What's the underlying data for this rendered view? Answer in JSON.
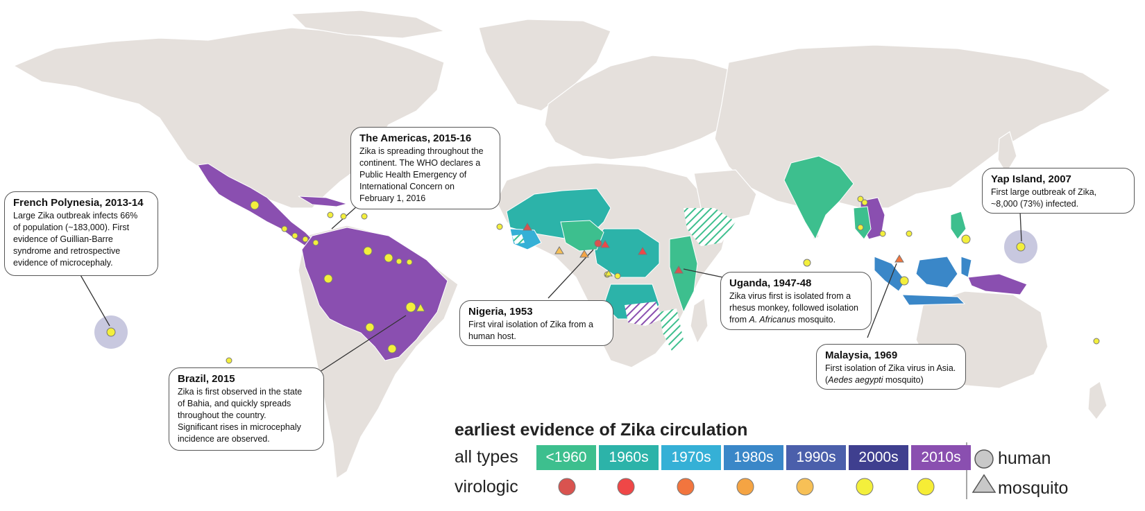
{
  "legend": {
    "title": "earliest evidence of Zika circulation",
    "row_all_types": "all types",
    "row_virologic": "virologic",
    "periods": [
      {
        "label": "<1960",
        "color": "#3dbf8e",
        "dot": "#d9534f"
      },
      {
        "label": "1960s",
        "color": "#2cb3a9",
        "dot": "#ef4747"
      },
      {
        "label": "1970s",
        "color": "#35b0d6",
        "dot": "#f2753e"
      },
      {
        "label": "1980s",
        "color": "#3a87c8",
        "dot": "#f5a443"
      },
      {
        "label": "1990s",
        "color": "#4b5fab",
        "dot": "#f7c056"
      },
      {
        "label": "2000s",
        "color": "#3f3f8f",
        "dot": "#f3ef3c"
      },
      {
        "label": "2010s",
        "color": "#8a4fb0",
        "dot": "#f6ed35"
      }
    ],
    "human_label": "human",
    "mosquito_label": "mosquito"
  },
  "callouts": {
    "french_polynesia": {
      "title": "French Polynesia, 2013-14",
      "lines": [
        "Large Zika outbreak infects 66%",
        "of population (~183,000). First",
        "evidence of Guillian-Barre",
        "syndrome and retrospective",
        "evidence of microcephaly."
      ]
    },
    "americas": {
      "title": "The Americas, 2015-16",
      "lines": [
        "Zika is spreading throughout the",
        "continent. The WHO declares a",
        "Public Health Emergency of",
        "International Concern on",
        "February 1, 2016"
      ]
    },
    "brazil": {
      "title": "Brazil, 2015",
      "lines": [
        "Zika is first observed in the state",
        "of Bahia, and quickly spreads",
        "throughout the country.",
        "Significant rises in microcephaly",
        "incidence are observed."
      ]
    },
    "nigeria": {
      "title": "Nigeria, 1953",
      "lines": [
        "First viral isolation of Zika from a",
        "human host."
      ]
    },
    "uganda": {
      "title": "Uganda, 1947-48",
      "lines": [
        "Zika virus first is isolated from a",
        "rhesus monkey, followed isolation"
      ],
      "line3_prefix": "from ",
      "line3_italic": "A. Africanus",
      "line3_suffix": " mosquito."
    },
    "malaysia": {
      "title": "Malaysia, 1969",
      "lines": [
        "First isolation of Zika virus in Asia."
      ],
      "line2_prefix": "(",
      "line2_italic": "Aedes aegypti",
      "line2_suffix": " mosquito)"
    },
    "yap": {
      "title": "Yap Island, 2007",
      "lines": [
        "First large outbreak of Zika,",
        "~8,000 (73%) infected."
      ]
    }
  },
  "colors": {
    "land": "#e5e0dc",
    "border": "#ffffff",
    "ocean": "#ffffff",
    "halo": "#c8c8df"
  }
}
